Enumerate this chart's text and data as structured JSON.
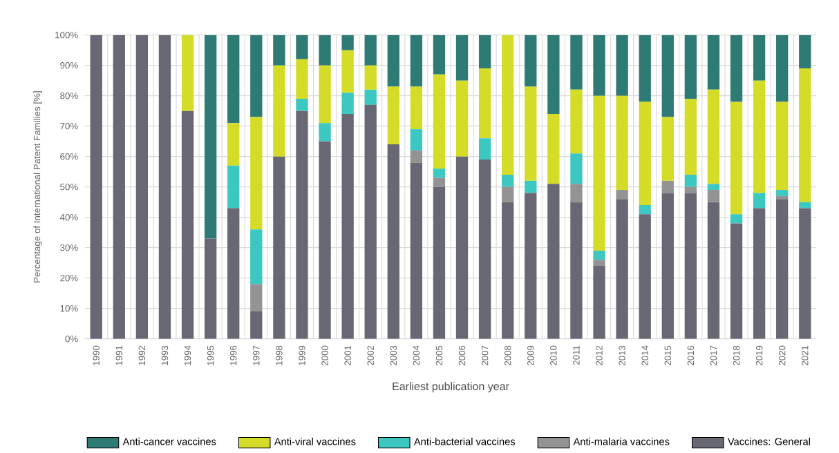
{
  "chart_data": {
    "type": "bar",
    "stacked": true,
    "xlabel": "Earliest publication year",
    "ylabel": "Percentage of International Patent Families [%]",
    "categories": [
      "1990",
      "1991",
      "1992",
      "1993",
      "1994",
      "1995",
      "1996",
      "1997",
      "1998",
      "1999",
      "2000",
      "2001",
      "2002",
      "2003",
      "2004",
      "2005",
      "2006",
      "2007",
      "2008",
      "2009",
      "2010",
      "2011",
      "2012",
      "2013",
      "2014",
      "2015",
      "2016",
      "2017",
      "2018",
      "2019",
      "2020",
      "2021"
    ],
    "series": [
      {
        "name": "Vaccines: General",
        "color": "#676873",
        "values": [
          100,
          100,
          100,
          100,
          75,
          33,
          43,
          9,
          60,
          75,
          65,
          74,
          77,
          64,
          58,
          50,
          60,
          59,
          45,
          48,
          51,
          45,
          24,
          46,
          41,
          48,
          48,
          45,
          38,
          43,
          46,
          43
        ]
      },
      {
        "name": "Anti-malaria vaccines",
        "color": "#939393",
        "values": [
          0,
          0,
          0,
          0,
          0,
          0,
          0,
          9,
          0,
          0,
          0,
          0,
          0,
          0,
          4,
          3,
          0,
          0,
          5,
          0,
          0,
          6,
          2,
          3,
          0,
          4,
          2,
          4,
          0,
          0,
          1,
          0
        ]
      },
      {
        "name": "Anti-bacterial vaccines",
        "color": "#3cc8c0",
        "values": [
          0,
          0,
          0,
          0,
          0,
          0,
          14,
          18,
          0,
          4,
          6,
          7,
          5,
          0,
          7,
          3,
          0,
          7,
          4,
          4,
          0,
          10,
          3,
          0,
          3,
          0,
          4,
          2,
          3,
          5,
          2,
          2
        ]
      },
      {
        "name": "Anti-viral vaccines",
        "color": "#d4dc28",
        "values": [
          0,
          0,
          0,
          0,
          25,
          0,
          14,
          37,
          30,
          13,
          19,
          14,
          8,
          19,
          14,
          31,
          25,
          23,
          46,
          31,
          23,
          21,
          51,
          31,
          34,
          21,
          25,
          31,
          37,
          37,
          29,
          44
        ]
      },
      {
        "name": "Anti-cancer vaccines",
        "color": "#2e7a74",
        "values": [
          0,
          0,
          0,
          0,
          0,
          67,
          29,
          27,
          10,
          8,
          10,
          5,
          10,
          17,
          17,
          13,
          15,
          11,
          0,
          17,
          26,
          18,
          20,
          20,
          22,
          27,
          21,
          18,
          22,
          15,
          22,
          11
        ]
      }
    ],
    "ylim": [
      0,
      100
    ],
    "yticks": [
      {
        "value": 0,
        "label": "0%"
      },
      {
        "value": 10,
        "label": "10%"
      },
      {
        "value": 20,
        "label": "20%"
      },
      {
        "value": 30,
        "label": "30%"
      },
      {
        "value": 40,
        "label": "40%"
      },
      {
        "value": 50,
        "label": "50%"
      },
      {
        "value": 60,
        "label": "60%"
      },
      {
        "value": 70,
        "label": "70%"
      },
      {
        "value": 80,
        "label": "80%"
      },
      {
        "value": 90,
        "label": "90%"
      },
      {
        "value": 100,
        "label": "100%"
      }
    ],
    "grid": true,
    "legend": "bottom"
  }
}
